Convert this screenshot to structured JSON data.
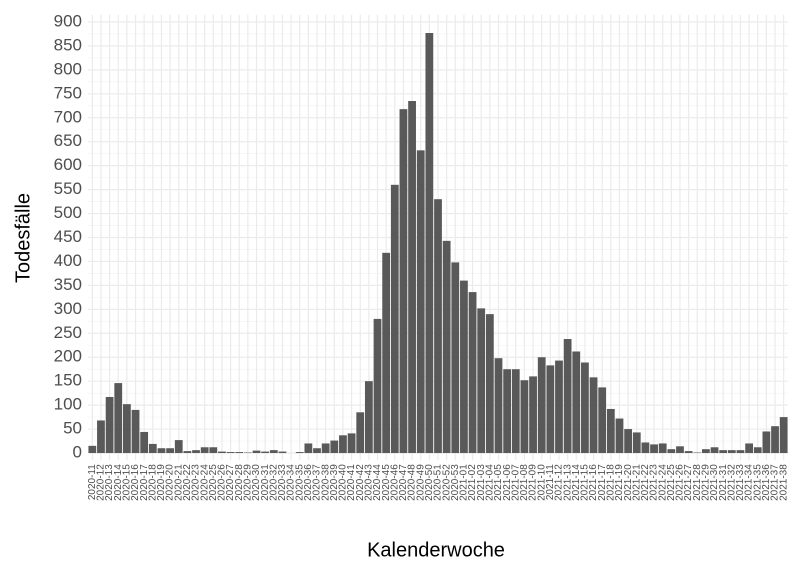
{
  "chart_data": {
    "type": "bar",
    "x_label": "Kalenderwoche",
    "y_label": "Todesfälle",
    "categories": [
      "2020-11",
      "2020-12",
      "2020-13",
      "2020-14",
      "2020-15",
      "2020-16",
      "2020-17",
      "2020-18",
      "2020-19",
      "2020-20",
      "2020-21",
      "2020-22",
      "2020-23",
      "2020-24",
      "2020-25",
      "2020-26",
      "2020-27",
      "2020-28",
      "2020-29",
      "2020-30",
      "2020-31",
      "2020-32",
      "2020-33",
      "2020-34",
      "2020-35",
      "2020-36",
      "2020-37",
      "2020-38",
      "2020-39",
      "2020-40",
      "2020-41",
      "2020-42",
      "2020-43",
      "2020-44",
      "2020-45",
      "2020-46",
      "2020-47",
      "2020-48",
      "2020-49",
      "2020-50",
      "2020-51",
      "2020-52",
      "2020-53",
      "2021-01",
      "2021-02",
      "2021-03",
      "2021-04",
      "2021-05",
      "2021-06",
      "2021-07",
      "2021-08",
      "2021-09",
      "2021-10",
      "2021-11",
      "2021-12",
      "2021-13",
      "2021-14",
      "2021-15",
      "2021-16",
      "2021-17",
      "2021-18",
      "2021-19",
      "2021-20",
      "2021-21",
      "2021-22",
      "2021-23",
      "2021-24",
      "2021-25",
      "2021-26",
      "2021-27",
      "2021-28",
      "2021-29",
      "2021-30",
      "2021-31",
      "2021-32",
      "2021-33",
      "2021-34",
      "2021-35",
      "2021-36",
      "2021-37",
      "2021-38"
    ],
    "values": [
      15,
      68,
      117,
      146,
      102,
      90,
      44,
      19,
      10,
      10,
      27,
      4,
      6,
      12,
      12,
      3,
      2,
      2,
      1,
      5,
      3,
      6,
      3,
      0,
      2,
      20,
      10,
      20,
      26,
      37,
      41,
      85,
      150,
      280,
      418,
      560,
      718,
      735,
      632,
      877,
      530,
      443,
      398,
      360,
      336,
      302,
      290,
      198,
      175,
      175,
      152,
      160,
      200,
      183,
      193,
      238,
      212,
      189,
      158,
      137,
      92,
      72,
      50,
      43,
      22,
      18,
      20,
      8,
      14,
      4,
      1,
      8,
      12,
      6,
      6,
      6,
      20,
      12,
      45,
      56,
      75
    ],
    "color": "#595959",
    "ylim": [
      -15,
      915
    ],
    "yticks": [
      0,
      50,
      100,
      150,
      200,
      250,
      300,
      350,
      400,
      450,
      500,
      550,
      600,
      650,
      700,
      750,
      800,
      850,
      900
    ],
    "grid": true
  }
}
